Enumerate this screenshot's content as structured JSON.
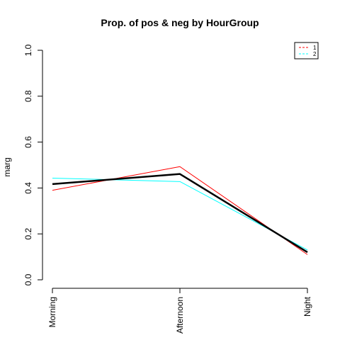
{
  "chart_data": {
    "type": "line",
    "title": "Prop. of pos & neg by HourGroup",
    "xlabel": "",
    "ylabel": "marg",
    "categories": [
      "Morning",
      "Afternoon",
      "Night"
    ],
    "ylim": [
      0,
      1
    ],
    "yticks": [
      "0.0",
      "0.2",
      "0.4",
      "0.6",
      "0.8",
      "1.0"
    ],
    "yticks_values": [
      0,
      0.2,
      0.4,
      0.6,
      0.8,
      1.0
    ],
    "grid": false,
    "legend_position": "top-right",
    "series": [
      {
        "name": "1",
        "values": [
          0.39,
          0.493,
          0.11
        ],
        "color": "#ff0000",
        "width": 1
      },
      {
        "name": "2",
        "values": [
          0.443,
          0.428,
          0.13
        ],
        "color": "#00ffff",
        "width": 1
      },
      {
        "values": [
          0.417,
          0.461,
          0.12
        ],
        "color": "#000000",
        "width": 2.5
      }
    ]
  }
}
